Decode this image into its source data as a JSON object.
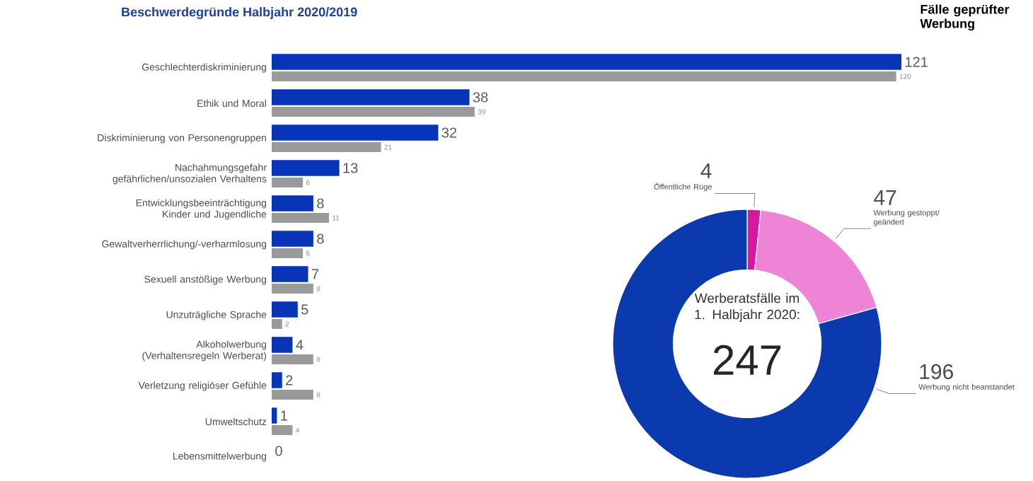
{
  "chart_data": [
    {
      "type": "bar",
      "orientation": "horizontal",
      "title": "Beschwerdegründe Halbjahr 2020/2019",
      "categories": [
        "Geschlechterdiskriminierung",
        "Ethik und Moral",
        "Diskriminierung von Personengruppen",
        "Nachahmungsgefahr gefährlichen/unsozialen Verhaltens",
        "Entwicklungsbeeinträchtigung Kinder und Jugendliche",
        "Gewaltverherrlichung/-verharmlosung",
        "Sexuell anstößige Werbung",
        "Unzuträgliche Sprache",
        "Alkoholwerbung (Verhaltensregeln Werberat)",
        "Verletzung religiöser Gefühle",
        "Umweltschutz",
        "Lebensmittelwerbung"
      ],
      "series": [
        {
          "color": "#0a34b8",
          "values": [
            121,
            38,
            32,
            13,
            8,
            8,
            7,
            5,
            4,
            2,
            1,
            0
          ]
        },
        {
          "color": "#9a9a9a",
          "values": [
            120,
            39,
            21,
            6,
            11,
            6,
            8,
            2,
            8,
            8,
            4,
            null
          ]
        }
      ],
      "data_labels": true
    },
    {
      "type": "donut",
      "title": "Fälle geprüfter Werbung",
      "categories": [
        "Öffentliche Rüge",
        "Werbung gestoppt/ geändert",
        "Werbung nicht beanstandet"
      ],
      "values": [
        4,
        47,
        196
      ],
      "colors": [
        "#d6189e",
        "#ee84d6",
        "#0a3aae"
      ],
      "data_labels": true,
      "annotations": [
        "Werberatsfälle im 1. Halbjahr 2020:",
        "247"
      ]
    }
  ]
}
